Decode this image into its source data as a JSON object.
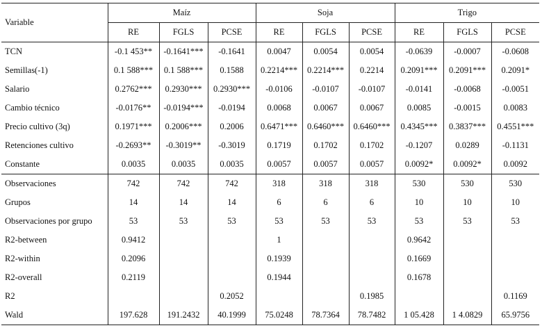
{
  "header": {
    "variable_label": "Variable",
    "groups": [
      "Maíz",
      "Soja",
      "Trigo"
    ],
    "columns": [
      "RE",
      "FGLS",
      "PCSE",
      "RE",
      "FGLS",
      "PCSE",
      "RE",
      "FGLS",
      "PCSE"
    ]
  },
  "rows": [
    {
      "label": "TCN",
      "cells": [
        "-0.1 453**",
        "-0.1641***",
        "-0.1641",
        "0.0047",
        "0.0054",
        "0.0054",
        "-0.0639",
        "-0.0007",
        "-0.0608"
      ]
    },
    {
      "label": "Semillas(-1)",
      "cells": [
        "0.1 588***",
        "0.1 588***",
        "0.1588",
        "0.2214***",
        "0.2214***",
        "0.2214",
        "0.2091***",
        "0.2091***",
        "0.2091*"
      ]
    },
    {
      "label": "Salario",
      "cells": [
        "0.2762***",
        "0.2930***",
        "0.2930***",
        "-0.0106",
        "-0.0107",
        "-0.0107",
        "-0.0141",
        "-0.0068",
        "-0.0051"
      ]
    },
    {
      "label": "Cambio técnico",
      "cells": [
        "-0.0176**",
        "-0.0194***",
        "-0.0194",
        "0.0068",
        "0.0067",
        "0.0067",
        "0.0085",
        "-0.0015",
        "0.0083"
      ]
    },
    {
      "label": "Precio cultivo (3q)",
      "cells": [
        "0.1971***",
        "0.2006***",
        "0.2006",
        "0.6471***",
        "0.6460***",
        "0.6460***",
        "0.4345***",
        "0.3837***",
        "0.4551***"
      ]
    },
    {
      "label": "Retenciones cultivo",
      "cells": [
        "-0.2693**",
        "-0.3019**",
        "-0.3019",
        "0.1719",
        "0.1702",
        "0.1702",
        "-0.1207",
        "0.0289",
        "-0.1131"
      ]
    },
    {
      "label": "Constante",
      "cells": [
        "0.0035",
        "0.0035",
        "0.0035",
        "0.0057",
        "0.0057",
        "0.0057",
        "0.0092*",
        "0.0092*",
        "0.0092"
      ]
    },
    {
      "label": "Observaciones",
      "cells": [
        "742",
        "742",
        "742",
        "318",
        "318",
        "318",
        "530",
        "530",
        "530"
      ]
    },
    {
      "label": "Grupos",
      "cells": [
        "14",
        "14",
        "14",
        "6",
        "6",
        "6",
        "10",
        "10",
        "10"
      ]
    },
    {
      "label": "Observaciones por grupo",
      "cells": [
        "53",
        "53",
        "53",
        "53",
        "53",
        "53",
        "53",
        "53",
        "53"
      ]
    },
    {
      "label": "R2-between",
      "cells": [
        "0.9412",
        "",
        "",
        "1",
        "",
        "",
        "0.9642",
        "",
        ""
      ]
    },
    {
      "label": "R2-within",
      "cells": [
        "0.2096",
        "",
        "",
        "0.1939",
        "",
        "",
        "0.1669",
        "",
        ""
      ]
    },
    {
      "label": "R2-overall",
      "cells": [
        "0.2119",
        "",
        "",
        "0.1944",
        "",
        "",
        "0.1678",
        "",
        ""
      ]
    },
    {
      "label": "R2",
      "cells": [
        "",
        "",
        "0.2052",
        "",
        "",
        "0.1985",
        "",
        "",
        "0.1169"
      ]
    },
    {
      "label": "Wald",
      "cells": [
        "197.628",
        "191.2432",
        "40.1999",
        "75.0248",
        "78.7364",
        "78.7482",
        "1 05.428",
        "1 4.0829",
        "65.9756"
      ]
    }
  ]
}
